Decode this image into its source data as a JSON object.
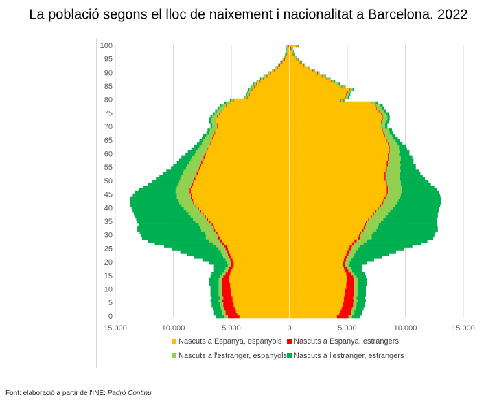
{
  "chart_data": {
    "type": "pyramid",
    "title": "La població segons el lloc de naixement i nacionalitat a Barcelona. 2022",
    "source": "Font: elaboració a partir de l'INE: ",
    "source_italic": "Padró Continu",
    "y": [
      0,
      1,
      2,
      3,
      4,
      5,
      6,
      7,
      8,
      9,
      10,
      11,
      12,
      13,
      14,
      15,
      16,
      17,
      18,
      19,
      20,
      21,
      22,
      23,
      24,
      25,
      26,
      27,
      28,
      29,
      30,
      31,
      32,
      33,
      34,
      35,
      36,
      37,
      38,
      39,
      40,
      41,
      42,
      43,
      44,
      45,
      46,
      47,
      48,
      49,
      50,
      51,
      52,
      53,
      54,
      55,
      56,
      57,
      58,
      59,
      60,
      61,
      62,
      63,
      64,
      65,
      66,
      67,
      68,
      69,
      70,
      71,
      72,
      73,
      74,
      75,
      76,
      77,
      78,
      79,
      80,
      81,
      82,
      83,
      84,
      85,
      86,
      87,
      88,
      89,
      90,
      91,
      92,
      93,
      94,
      95,
      96,
      97,
      98,
      99,
      100
    ],
    "ylim": [
      -0.5,
      100.5
    ],
    "yticks": [
      0,
      5,
      10,
      15,
      20,
      25,
      30,
      35,
      40,
      45,
      50,
      55,
      60,
      65,
      70,
      75,
      80,
      85,
      90,
      95,
      100
    ],
    "xlim": [
      -15000,
      15000
    ],
    "xticks": [
      {
        "value": -15000,
        "label": "15.000"
      },
      {
        "value": -10000,
        "label": "10.000"
      },
      {
        "value": -5000,
        "label": "5.000"
      },
      0,
      {
        "value": 5000,
        "label": "5.000"
      },
      {
        "value": 10000,
        "label": "10.000"
      },
      {
        "value": 15000,
        "label": "15.000"
      }
    ],
    "grid": true,
    "series": [
      {
        "name": "Nascuts a Espanya, espanyols",
        "color": "#ffc000",
        "left": [
          -4300,
          -4500,
          -4600,
          -4700,
          -4800,
          -4800,
          -4900,
          -4900,
          -5000,
          -5000,
          -5000,
          -5100,
          -5100,
          -5200,
          -5200,
          -5200,
          -5100,
          -5000,
          -4900,
          -4800,
          -4800,
          -4900,
          -5000,
          -5100,
          -5200,
          -5300,
          -5400,
          -5600,
          -5800,
          -6000,
          -6100,
          -6200,
          -6400,
          -6500,
          -6600,
          -6800,
          -7000,
          -7200,
          -7400,
          -7600,
          -7800,
          -8000,
          -8200,
          -8300,
          -8400,
          -8400,
          -8500,
          -8500,
          -8400,
          -8300,
          -8200,
          -8100,
          -8000,
          -7900,
          -7800,
          -7700,
          -7600,
          -7500,
          -7400,
          -7300,
          -7200,
          -7100,
          -7000,
          -6900,
          -6800,
          -6700,
          -6600,
          -6500,
          -6400,
          -6300,
          -6200,
          -6200,
          -6300,
          -6300,
          -6200,
          -6000,
          -5800,
          -5600,
          -5400,
          -5000,
          -4800,
          -3600,
          -3400,
          -3300,
          -3200,
          -3000,
          -2800,
          -2500,
          -2200,
          -1900,
          -1600,
          -1300,
          -1000,
          -800,
          -600,
          -400,
          -300,
          -200,
          -100,
          -100,
          -50
        ],
        "right": [
          4100,
          4300,
          4400,
          4500,
          4600,
          4600,
          4700,
          4700,
          4800,
          4800,
          4800,
          4900,
          4900,
          5000,
          5000,
          5000,
          4900,
          4800,
          4700,
          4600,
          4600,
          4700,
          4800,
          4900,
          5000,
          5100,
          5200,
          5400,
          5600,
          5900,
          6000,
          6100,
          6300,
          6400,
          6500,
          6600,
          6800,
          7000,
          7200,
          7400,
          7600,
          7800,
          8000,
          8100,
          8200,
          8300,
          8400,
          8400,
          8400,
          8300,
          8300,
          8200,
          8200,
          8200,
          8300,
          8300,
          8400,
          8400,
          8500,
          8500,
          8500,
          8600,
          8600,
          8600,
          8500,
          8400,
          8300,
          8200,
          8100,
          8000,
          7800,
          7800,
          7900,
          8000,
          8000,
          7900,
          7700,
          7500,
          7400,
          7000,
          4400,
          4800,
          4900,
          5000,
          5200,
          4500,
          4000,
          3600,
          3200,
          2800,
          2400,
          2000,
          1600,
          1200,
          900,
          600,
          400,
          300,
          200,
          100,
          600
        ]
      },
      {
        "name": "Nascuts a Espanya, estrangers",
        "color": "#ff0000",
        "left": [
          -1000,
          -1000,
          -900,
          -900,
          -900,
          -900,
          -900,
          -800,
          -800,
          -800,
          -800,
          -700,
          -700,
          -600,
          -600,
          -500,
          -400,
          -300,
          -300,
          -200,
          -200,
          -200,
          -200,
          -200,
          -200,
          -200,
          -200,
          -200,
          -200,
          -200,
          -100,
          -100,
          -100,
          -100,
          -100,
          -100,
          -100,
          -100,
          -100,
          -100,
          -100,
          -100,
          -100,
          -100,
          -100,
          -100,
          -100,
          -100,
          -100,
          -100,
          -100,
          -100,
          -100,
          -100,
          -100,
          -100,
          -100,
          -100,
          -100,
          -100,
          -50,
          -50,
          -50,
          -50,
          -50,
          -50,
          -50,
          -50,
          -50,
          -50,
          -50,
          -50,
          -50,
          -50,
          -50,
          -50,
          -50,
          -50,
          -50,
          -50,
          -50,
          -50,
          -50,
          -50,
          -50,
          -50,
          -50,
          -50,
          -50,
          -50,
          -50,
          -50,
          -50,
          -50,
          -50,
          -50,
          -50,
          -50,
          -50,
          -50,
          -50
        ],
        "right": [
          1000,
          1000,
          900,
          900,
          900,
          900,
          900,
          800,
          800,
          800,
          800,
          700,
          700,
          600,
          600,
          500,
          400,
          300,
          300,
          200,
          200,
          200,
          200,
          200,
          200,
          200,
          200,
          200,
          200,
          200,
          100,
          100,
          100,
          100,
          100,
          100,
          100,
          100,
          100,
          100,
          100,
          100,
          100,
          100,
          100,
          100,
          100,
          100,
          100,
          100,
          100,
          100,
          100,
          100,
          100,
          100,
          100,
          100,
          100,
          100,
          50,
          50,
          50,
          50,
          50,
          50,
          50,
          50,
          50,
          50,
          50,
          50,
          50,
          50,
          50,
          50,
          50,
          50,
          50,
          50,
          50,
          50,
          50,
          50,
          50,
          50,
          50,
          50,
          50,
          50,
          50,
          50,
          50,
          50,
          50,
          50,
          50,
          50,
          50,
          50,
          50
        ]
      },
      {
        "name": "Nascuts a l'estranger, espanyols",
        "color": "#92d050",
        "left": [
          -300,
          -300,
          -300,
          -300,
          -300,
          -300,
          -300,
          -300,
          -300,
          -300,
          -300,
          -300,
          -300,
          -300,
          -300,
          -300,
          -300,
          -300,
          -300,
          -300,
          -400,
          -400,
          -500,
          -500,
          -500,
          -600,
          -700,
          -800,
          -900,
          -1000,
          -1000,
          -1000,
          -1100,
          -1100,
          -1100,
          -1200,
          -1200,
          -1200,
          -1200,
          -1200,
          -1200,
          -1200,
          -1200,
          -1200,
          -1200,
          -1200,
          -1200,
          -1200,
          -1200,
          -1200,
          -1200,
          -1200,
          -1200,
          -1200,
          -1200,
          -1100,
          -1100,
          -1000,
          -1000,
          -1000,
          -900,
          -900,
          -800,
          -800,
          -700,
          -700,
          -600,
          -600,
          -500,
          -500,
          -400,
          -400,
          -400,
          -400,
          -400,
          -400,
          -400,
          -400,
          -400,
          -400,
          -200,
          -200,
          -200,
          -200,
          -200,
          -200,
          -200,
          -200,
          -200,
          -200,
          -100,
          -100,
          -100,
          -100,
          -100,
          -100,
          -100,
          -100,
          -100,
          -100,
          -100
        ],
        "right": [
          300,
          300,
          300,
          300,
          300,
          300,
          300,
          300,
          300,
          300,
          300,
          300,
          300,
          300,
          300,
          300,
          300,
          300,
          300,
          300,
          400,
          400,
          500,
          500,
          500,
          600,
          700,
          800,
          900,
          1000,
          1000,
          1000,
          1100,
          1100,
          1100,
          1200,
          1200,
          1200,
          1200,
          1200,
          1200,
          1200,
          1200,
          1200,
          1200,
          1200,
          1200,
          1200,
          1200,
          1200,
          1200,
          1200,
          1200,
          1200,
          1200,
          1100,
          1100,
          1000,
          1000,
          1000,
          900,
          900,
          800,
          800,
          700,
          700,
          600,
          600,
          500,
          500,
          400,
          400,
          400,
          400,
          400,
          400,
          400,
          400,
          400,
          400,
          200,
          200,
          200,
          200,
          200,
          200,
          200,
          200,
          200,
          200,
          100,
          100,
          100,
          100,
          100,
          100,
          100,
          100,
          100,
          100,
          100
        ]
      },
      {
        "name": "Nascuts a l'estranger, estrangers",
        "color": "#00b050",
        "left": [
          -700,
          -700,
          -700,
          -700,
          -700,
          -700,
          -700,
          -700,
          -700,
          -700,
          -700,
          -700,
          -800,
          -800,
          -800,
          -800,
          -900,
          -900,
          -1000,
          -1200,
          -1500,
          -2000,
          -2500,
          -3000,
          -3500,
          -4000,
          -4500,
          -5000,
          -5300,
          -5500,
          -5600,
          -5600,
          -5500,
          -5400,
          -5200,
          -5000,
          -4900,
          -4800,
          -4700,
          -4600,
          -4500,
          -4400,
          -4200,
          -4100,
          -4000,
          -3800,
          -3500,
          -3200,
          -2900,
          -2600,
          -2300,
          -2100,
          -1900,
          -1700,
          -1500,
          -1300,
          -1200,
          -1100,
          -1000,
          -900,
          -800,
          -700,
          -600,
          -500,
          -400,
          -300,
          -300,
          -300,
          -200,
          -200,
          -150,
          -150,
          -150,
          -150,
          -150,
          -150,
          -150,
          -150,
          -150,
          -150,
          -80,
          -80,
          -80,
          -80,
          -80,
          -80,
          -80,
          -80,
          -80,
          -80,
          -30,
          -30,
          -30,
          -30,
          -30,
          -30,
          -30,
          -30,
          -30,
          -30,
          -30
        ],
        "right": [
          700,
          700,
          700,
          700,
          700,
          700,
          700,
          700,
          700,
          700,
          700,
          700,
          800,
          800,
          800,
          800,
          900,
          900,
          1000,
          1200,
          1500,
          2000,
          2500,
          3000,
          3500,
          4000,
          4500,
          5000,
          5200,
          5300,
          5400,
          5400,
          5300,
          5200,
          5000,
          4800,
          4600,
          4500,
          4300,
          4200,
          4000,
          3900,
          3800,
          3700,
          3600,
          3400,
          3200,
          3000,
          2800,
          2600,
          2400,
          2200,
          2000,
          1800,
          1600,
          1400,
          1300,
          1200,
          1100,
          1000,
          900,
          800,
          700,
          600,
          500,
          400,
          400,
          300,
          300,
          300,
          200,
          200,
          200,
          200,
          200,
          200,
          200,
          200,
          200,
          200,
          100,
          100,
          100,
          100,
          100,
          100,
          100,
          100,
          100,
          100,
          50,
          50,
          50,
          50,
          50,
          50,
          50,
          50,
          50,
          50,
          50
        ]
      }
    ]
  }
}
